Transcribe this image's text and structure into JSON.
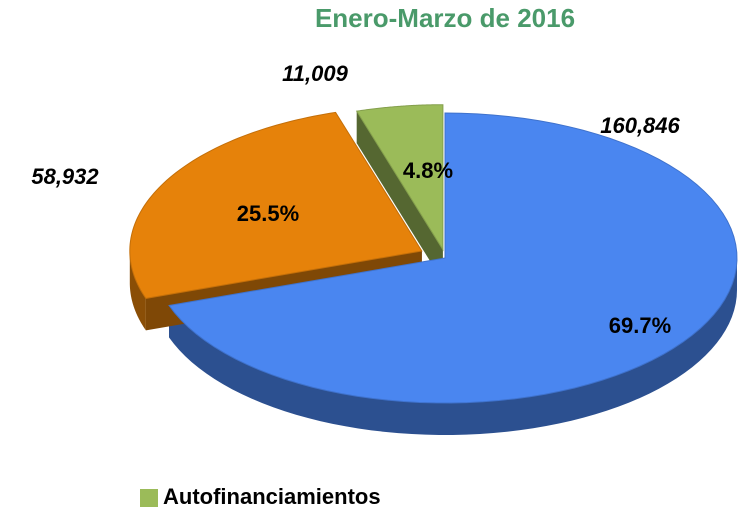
{
  "chart_data": {
    "type": "pie",
    "title": "Enero-Marzo de 2016",
    "categories": [
      null,
      null,
      "Autofinanciamientos"
    ],
    "values": [
      160846,
      58932,
      11009
    ],
    "value_labels": [
      "160,846",
      "58,932",
      "11,009"
    ],
    "percents": [
      69.7,
      25.5,
      4.8
    ],
    "percent_labels": [
      "69.7%",
      "25.5%",
      "4.8%"
    ],
    "colors": [
      "#4a86f0",
      "#e6820a",
      "#9bbb59"
    ]
  }
}
